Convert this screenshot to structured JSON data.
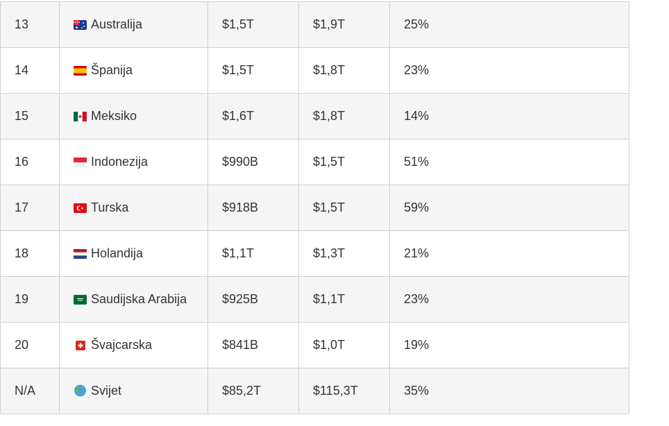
{
  "table": {
    "rows": [
      [
        "13",
        "Australija",
        "$1,5T",
        "$1,9T",
        "25%"
      ],
      [
        "14",
        "Španija",
        "$1,5T",
        "$1,8T",
        "23%"
      ],
      [
        "15",
        "Meksiko",
        "$1,6T",
        "$1,8T",
        "14%"
      ],
      [
        "16",
        "Indonezija",
        "$990B",
        "$1,5T",
        "51%"
      ],
      [
        "17",
        "Turska",
        "$918B",
        "$1,5T",
        "59%"
      ],
      [
        "18",
        "Holandija",
        "$1,1T",
        "$1,3T",
        "21%"
      ],
      [
        "19",
        "Saudijska Arabija",
        "$925B",
        "$1,1T",
        "23%"
      ],
      [
        "20",
        "Švajcarska",
        "$841B",
        "$1,0T",
        "19%"
      ],
      [
        "N/A",
        "Svijet",
        "$85,2T",
        "$115,3T",
        "35%"
      ]
    ]
  }
}
